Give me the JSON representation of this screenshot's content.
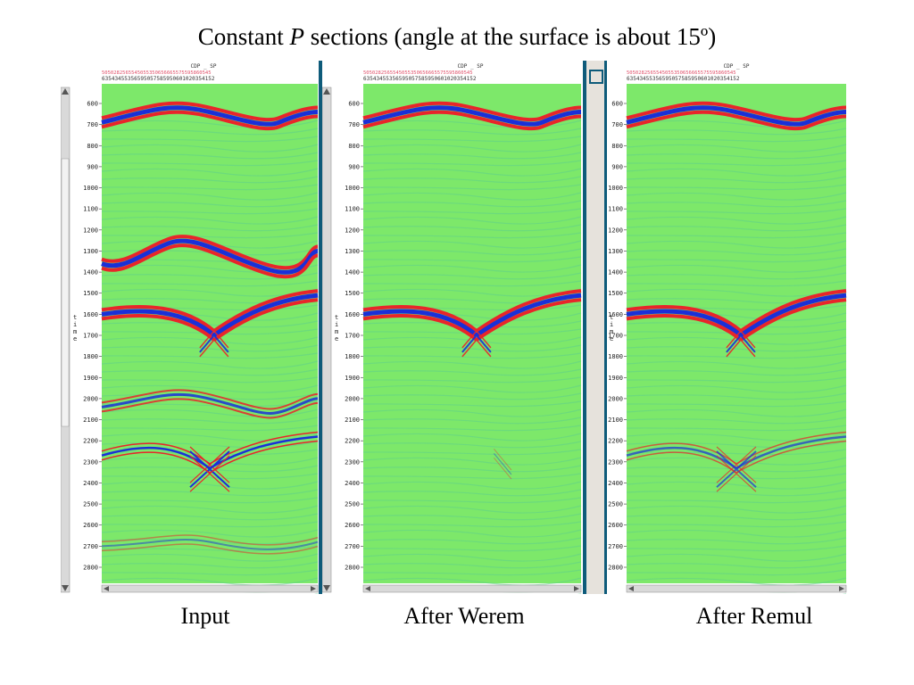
{
  "title": {
    "prefix": "Constant ",
    "italic": "P",
    "suffix": " sections (angle at the surface is about 15º)"
  },
  "header_label": "CDP _ SP",
  "axis_label": "time",
  "time_ticks": [
    "600",
    "700",
    "800",
    "900",
    "1000",
    "1100",
    "1200",
    "1300",
    "1400",
    "1500",
    "1600",
    "1700",
    "1800",
    "1900",
    "2000",
    "2100",
    "2200",
    "2300",
    "2400",
    "2500",
    "2600",
    "2700",
    "2800"
  ],
  "panels": [
    {
      "id": "input",
      "caption": "Input"
    },
    {
      "id": "werem",
      "caption": "After Werem"
    },
    {
      "id": "remul",
      "caption": "After Remul"
    }
  ],
  "colors": {
    "background": "#7de86a",
    "positive": "#e8252a",
    "negative": "#1a2fd8",
    "frame": "#0e5b7a"
  }
}
